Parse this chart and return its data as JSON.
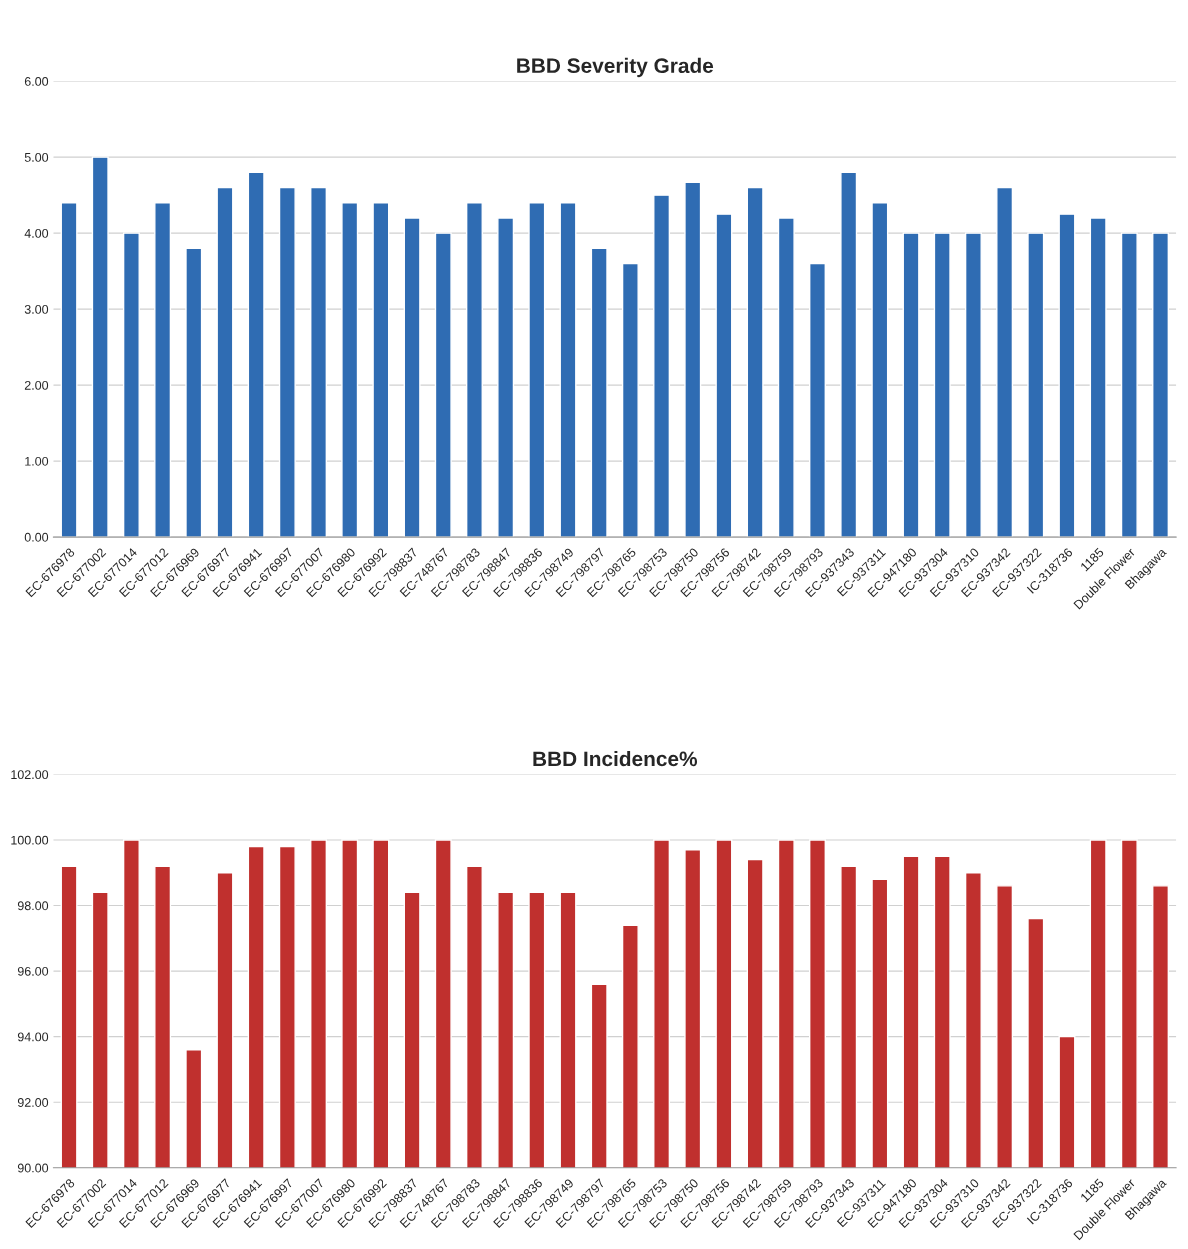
{
  "chart_data": [
    {
      "type": "bar",
      "title": "BBD Severity Grade",
      "categories": [
        "EC-676978",
        "EC-677002",
        "EC-677014",
        "EC-677012",
        "EC-676969",
        "EC-676977",
        "EC-676941",
        "EC-676997",
        "EC-677007",
        "EC-676980",
        "EC-676992",
        "EC-798837",
        "EC-748767",
        "EC-798783",
        "EC-798847",
        "EC-798836",
        "EC-798749",
        "EC-798797",
        "EC-798765",
        "EC-798753",
        "EC-798750",
        "EC-798756",
        "EC-798742",
        "EC-798759",
        "EC-798793",
        "EC-937343",
        "EC-937311",
        "EC-947180",
        "EC-937304",
        "EC-937310",
        "EC-937342",
        "EC-937322",
        "IC-318736",
        "1185",
        "Double Flower",
        "Bhagawa"
      ],
      "values": [
        4.4,
        5.0,
        4.0,
        4.4,
        3.8,
        4.6,
        4.8,
        4.6,
        4.6,
        4.4,
        4.4,
        4.2,
        4.0,
        4.4,
        4.2,
        4.4,
        4.4,
        3.8,
        3.6,
        4.5,
        4.67,
        4.25,
        4.6,
        4.2,
        3.6,
        4.8,
        4.4,
        4.0,
        4.0,
        4.0,
        4.6,
        4.0,
        4.25,
        4.2,
        4.0,
        4.0
      ],
      "color": "#2f6cb3",
      "ylim": [
        0,
        6
      ],
      "yticks": [
        {
          "value": 0,
          "label": "0.00"
        },
        {
          "value": 1,
          "label": "1.00"
        },
        {
          "value": 2,
          "label": "2.00"
        },
        {
          "value": 3,
          "label": "3.00"
        },
        {
          "value": 4,
          "label": "4.00"
        },
        {
          "value": 5,
          "label": "5.00"
        },
        {
          "value": 6,
          "label": "6.00"
        }
      ],
      "grid": "y",
      "legend": false
    },
    {
      "type": "bar",
      "title": "BBD Incidence%",
      "categories": [
        "EC-676978",
        "EC-677002",
        "EC-677014",
        "EC-677012",
        "EC-676969",
        "EC-676977",
        "EC-676941",
        "EC-676997",
        "EC-677007",
        "EC-676980",
        "EC-676992",
        "EC-798837",
        "EC-748767",
        "EC-798783",
        "EC-798847",
        "EC-798836",
        "EC-798749",
        "EC-798797",
        "EC-798765",
        "EC-798753",
        "EC-798750",
        "EC-798756",
        "EC-798742",
        "EC-798759",
        "EC-798793",
        "EC-937343",
        "EC-937311",
        "EC-947180",
        "EC-937304",
        "EC-937310",
        "EC-937342",
        "EC-937322",
        "IC-318736",
        "1185",
        "Double Flower",
        "Bhagawa"
      ],
      "values": [
        99.2,
        98.4,
        100,
        99.2,
        93.6,
        99.0,
        99.8,
        99.8,
        100,
        100,
        100,
        98.4,
        100,
        99.2,
        98.4,
        98.4,
        98.4,
        95.6,
        97.4,
        100,
        99.7,
        100,
        99.4,
        100,
        100,
        99.2,
        98.8,
        99.5,
        99.5,
        99.0,
        98.6,
        97.6,
        94.0,
        100,
        100,
        98.6
      ],
      "color": "#c0302e",
      "ylim": [
        90,
        102
      ],
      "yticks": [
        {
          "value": 90,
          "label": "90.00"
        },
        {
          "value": 92,
          "label": "92.00"
        },
        {
          "value": 94,
          "label": "94.00"
        },
        {
          "value": 96,
          "label": "96.00"
        },
        {
          "value": 98,
          "label": "98.00"
        },
        {
          "value": 100,
          "label": "100.00"
        },
        {
          "value": 102,
          "label": "102.00"
        }
      ],
      "grid": "y",
      "legend": false
    }
  ]
}
